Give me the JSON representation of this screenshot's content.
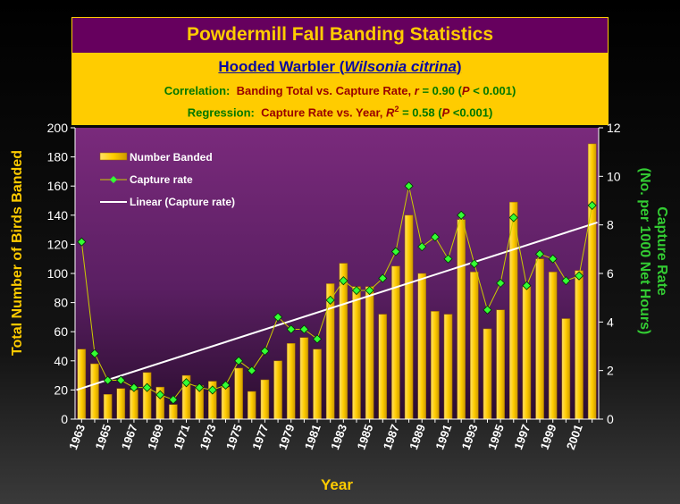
{
  "title": "Powdermill Fall Banding Statistics",
  "species": {
    "common": "Hooded Warbler (",
    "latin": "Wilsonia citrina",
    "close": ")"
  },
  "stat_lines": {
    "correlation_label": "Correlation:",
    "correlation_text": "Banding Total vs. Capture Rate,",
    "correlation_r_sym": "r",
    "correlation_r_val": "= 0.90 (",
    "correlation_p_sym": "P",
    "correlation_p_val": "< 0.001)",
    "regression_label": "Regression:",
    "regression_text": "Capture Rate vs. Year,",
    "regression_r_sym": "R",
    "regression_sup": "2",
    "regression_r_val": "= 0.58 (",
    "regression_p_sym": "P",
    "regression_p_val": "<0.001)"
  },
  "colors": {
    "bar": "#ffcc00",
    "point": "#33ff33",
    "line": "#ffffff",
    "capture_line": "#cccc00",
    "left_axis_label": "#ffcc00",
    "right_axis_label": "#33cc33"
  },
  "chart_data": {
    "type": "bar",
    "xlabel": "Year",
    "ylabel": "Total Number of Birds Banded",
    "y2label_line1": "Capture Rate",
    "y2label_line2": "(No. per 1000 Net Hours)",
    "ylim": [
      0,
      200
    ],
    "y2lim": [
      0,
      12
    ],
    "yticks": [
      0,
      20,
      40,
      60,
      80,
      100,
      120,
      140,
      160,
      180,
      200
    ],
    "y2ticks": [
      0,
      2,
      4,
      6,
      8,
      10,
      12
    ],
    "x": [
      1963,
      1964,
      1965,
      1966,
      1967,
      1968,
      1969,
      1970,
      1971,
      1972,
      1973,
      1974,
      1975,
      1976,
      1977,
      1978,
      1979,
      1980,
      1981,
      1982,
      1983,
      1984,
      1985,
      1986,
      1987,
      1988,
      1989,
      1990,
      1991,
      1992,
      1993,
      1994,
      1995,
      1996,
      1997,
      1998,
      1999,
      2000,
      2001,
      2002
    ],
    "x_tick_labels": [
      "1963",
      "1965",
      "1967",
      "1969",
      "1971",
      "1973",
      "1975",
      "1977",
      "1979",
      "1981",
      "1983",
      "1985",
      "1987",
      "1989",
      "1991",
      "1993",
      "1995",
      "1997",
      "1999",
      "2001"
    ],
    "legend": [
      "Number Banded",
      "Capture rate",
      "Linear (Capture rate)"
    ],
    "legend_position": "top-left",
    "series": [
      {
        "name": "Number Banded",
        "type": "bar",
        "axis": "left",
        "values": [
          48,
          38,
          17,
          21,
          20,
          32,
          22,
          10,
          30,
          23,
          26,
          22,
          35,
          19,
          27,
          40,
          52,
          56,
          48,
          93,
          107,
          91,
          91,
          72,
          105,
          140,
          100,
          74,
          72,
          137,
          101,
          62,
          75,
          149,
          91,
          110,
          101,
          69,
          102,
          189
        ]
      },
      {
        "name": "Capture rate",
        "type": "line",
        "axis": "right",
        "values": [
          7.3,
          2.7,
          1.6,
          1.6,
          1.3,
          1.3,
          1.0,
          0.8,
          1.5,
          1.3,
          1.2,
          1.4,
          2.4,
          2.0,
          2.8,
          4.2,
          3.7,
          3.7,
          3.3,
          4.9,
          5.7,
          5.3,
          5.3,
          5.8,
          6.9,
          9.6,
          7.1,
          7.5,
          6.6,
          8.4,
          6.4,
          4.5,
          5.6,
          8.3,
          5.5,
          6.8,
          6.6,
          5.7,
          5.9,
          8.8
        ]
      },
      {
        "name": "Linear (Capture rate)",
        "type": "trendline",
        "axis": "right",
        "endpoints": [
          [
            1962.6,
            1.2
          ],
          [
            2002.4,
            8.1
          ]
        ]
      }
    ]
  }
}
